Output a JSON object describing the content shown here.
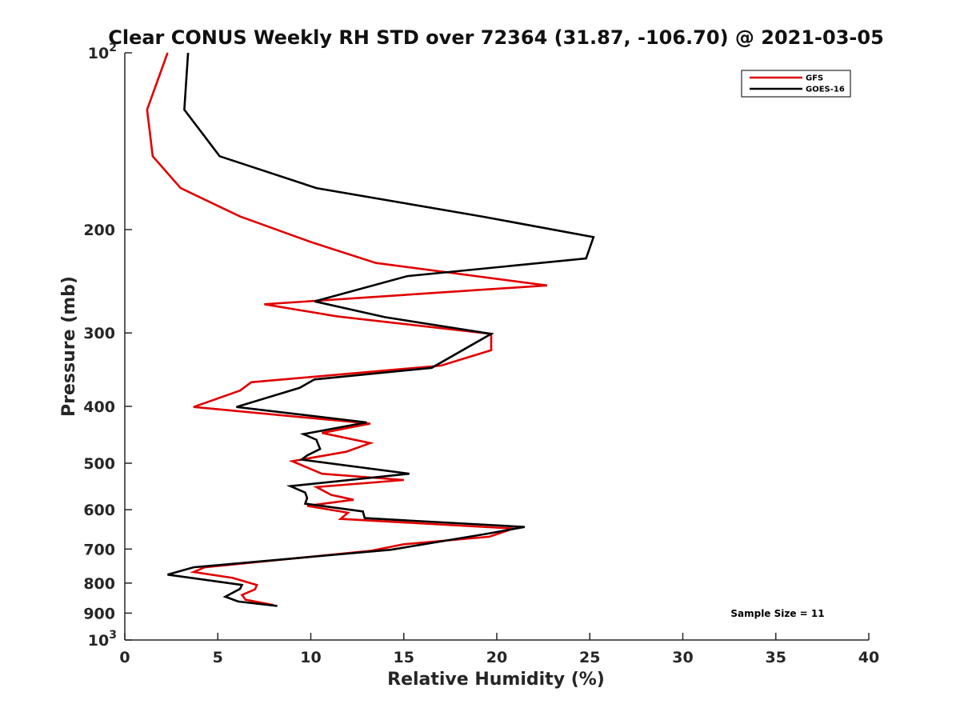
{
  "chart_data": {
    "type": "line",
    "title": "Clear CONUS Weekly RH STD over 72364 (31.87, -106.70) @ 2021-03-05",
    "xlabel": "Relative Humidity (%)",
    "ylabel": "Pressure (mb)",
    "xlim": [
      0,
      40
    ],
    "ylim": [
      100,
      1000
    ],
    "y_scale": "log",
    "y_reversed": true,
    "grid": false,
    "legend_position": "top-right",
    "x_ticks": [
      "0",
      "5",
      "10",
      "15",
      "20",
      "25",
      "30",
      "35",
      "40"
    ],
    "x_tick_values": [
      0,
      5,
      10,
      15,
      20,
      25,
      30,
      35,
      40
    ],
    "y_ticks": [
      {
        "value": 100,
        "label": "10",
        "sup": "2"
      },
      {
        "value": 200,
        "label": "200",
        "sup": ""
      },
      {
        "value": 300,
        "label": "300",
        "sup": ""
      },
      {
        "value": 400,
        "label": "400",
        "sup": ""
      },
      {
        "value": 500,
        "label": "500",
        "sup": ""
      },
      {
        "value": 600,
        "label": "600",
        "sup": ""
      },
      {
        "value": 700,
        "label": "700",
        "sup": ""
      },
      {
        "value": 800,
        "label": "800",
        "sup": ""
      },
      {
        "value": 900,
        "label": "900",
        "sup": ""
      },
      {
        "value": 1000,
        "label": "10",
        "sup": "3"
      }
    ],
    "annotation": "Sample Size = 11",
    "series": [
      {
        "name": "GFS",
        "color": "#e00000",
        "points": [
          [
            2.3,
            100
          ],
          [
            1.2,
            125
          ],
          [
            1.5,
            150
          ],
          [
            3.0,
            170
          ],
          [
            6.2,
            190
          ],
          [
            10.0,
            210
          ],
          [
            13.5,
            228
          ],
          [
            22.7,
            249
          ],
          [
            7.5,
            268
          ],
          [
            11.4,
            281
          ],
          [
            19.7,
            301
          ],
          [
            19.7,
            321
          ],
          [
            17.0,
            341
          ],
          [
            6.8,
            364
          ],
          [
            6.2,
            376
          ],
          [
            3.7,
            401
          ],
          [
            13.2,
            428
          ],
          [
            10.6,
            444
          ],
          [
            13.2,
            462
          ],
          [
            11.9,
            478
          ],
          [
            9.0,
            496
          ],
          [
            10.6,
            521
          ],
          [
            15.0,
            534
          ],
          [
            10.3,
            549
          ],
          [
            11.1,
            566
          ],
          [
            12.3,
            577
          ],
          [
            9.8,
            591
          ],
          [
            12.0,
            607
          ],
          [
            11.6,
            622
          ],
          [
            20.9,
            646
          ],
          [
            19.6,
            667
          ],
          [
            15.0,
            687
          ],
          [
            13.2,
            705
          ],
          [
            4.3,
            752
          ],
          [
            3.7,
            766
          ],
          [
            5.8,
            784
          ],
          [
            7.1,
            806
          ],
          [
            7.0,
            820
          ],
          [
            6.3,
            838
          ],
          [
            6.5,
            854
          ],
          [
            8.0,
            872
          ]
        ]
      },
      {
        "name": "GOES-16",
        "color": "#000000",
        "points": [
          [
            3.4,
            100
          ],
          [
            3.2,
            125
          ],
          [
            5.1,
            150
          ],
          [
            10.3,
            170
          ],
          [
            19.2,
            190
          ],
          [
            25.2,
            206
          ],
          [
            24.8,
            224
          ],
          [
            15.2,
            240
          ],
          [
            10.2,
            265
          ],
          [
            14.0,
            282
          ],
          [
            19.7,
            301
          ],
          [
            16.5,
            344
          ],
          [
            10.2,
            360
          ],
          [
            9.4,
            372
          ],
          [
            6.0,
            401
          ],
          [
            13.0,
            426
          ],
          [
            9.6,
            446
          ],
          [
            10.3,
            456
          ],
          [
            10.5,
            473
          ],
          [
            9.8,
            485
          ],
          [
            9.5,
            493
          ],
          [
            15.3,
            521
          ],
          [
            8.9,
            547
          ],
          [
            9.7,
            561
          ],
          [
            9.8,
            573
          ],
          [
            9.7,
            586
          ],
          [
            12.8,
            604
          ],
          [
            12.9,
            620
          ],
          [
            21.5,
            642
          ],
          [
            19.4,
            660
          ],
          [
            14.3,
            702
          ],
          [
            3.7,
            752
          ],
          [
            2.3,
            774
          ],
          [
            6.3,
            806
          ],
          [
            6.2,
            818
          ],
          [
            5.4,
            844
          ],
          [
            6.1,
            860
          ],
          [
            8.2,
            875
          ]
        ]
      }
    ]
  }
}
